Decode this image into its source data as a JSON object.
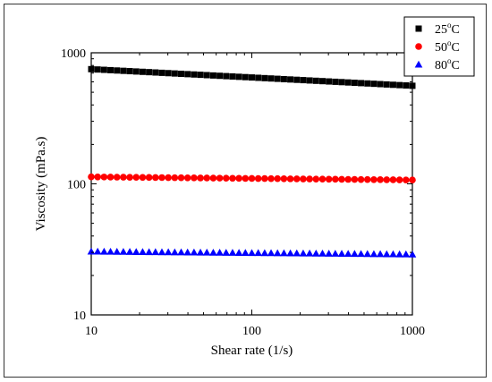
{
  "chart_data": {
    "type": "scatter",
    "xlabel": "Shear rate (1/s)",
    "ylabel": "Viscosity (mPa.s)",
    "xscale": "log",
    "yscale": "log",
    "xlim": [
      10,
      1000
    ],
    "ylim": [
      10,
      1000
    ],
    "xticks": [
      10,
      100,
      1000
    ],
    "xtick_labels": [
      "10",
      "100",
      "1000"
    ],
    "yticks": [
      10,
      100,
      1000
    ],
    "ytick_labels": [
      "10",
      "100",
      "1000"
    ],
    "grid": false,
    "legend_position": "top-right",
    "series": [
      {
        "name": "25°C",
        "legend_base": "25",
        "legend_sup": "o",
        "legend_unit": "C",
        "marker": "square",
        "color": "#000000",
        "x_start": 10,
        "x_end": 1000,
        "n_points": 51,
        "y_start": 750,
        "y_end": 560
      },
      {
        "name": "50°C",
        "legend_base": "50",
        "legend_sup": "o",
        "legend_unit": "C",
        "marker": "circle",
        "color": "#ff0000",
        "x_start": 10,
        "x_end": 1000,
        "n_points": 51,
        "y_start": 113,
        "y_end": 107
      },
      {
        "name": "80°C",
        "legend_base": "80",
        "legend_sup": "o",
        "legend_unit": "C",
        "marker": "triangle",
        "color": "#0000ff",
        "x_start": 10,
        "x_end": 1000,
        "n_points": 51,
        "y_start": 30.5,
        "y_end": 29.0
      }
    ]
  }
}
